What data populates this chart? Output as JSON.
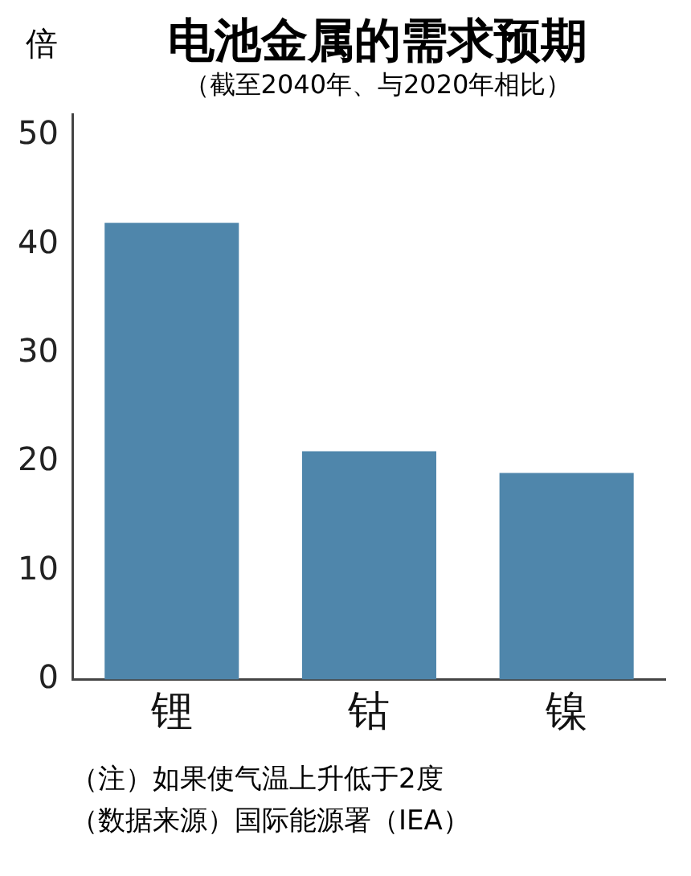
{
  "chart_data": {
    "type": "bar",
    "title": "电池金属的需求预期",
    "subtitle": "（截至2040年、与2020年相比）",
    "ylabel": "倍",
    "categories": [
      "锂",
      "钴",
      "镍"
    ],
    "values": [
      42,
      21,
      19
    ],
    "color": "#4f86ab",
    "ylim": [
      0,
      52
    ],
    "yticks": [
      0,
      10,
      20,
      30,
      40,
      50
    ],
    "grid": false,
    "legend": false,
    "annotations": [
      "（注）如果使气温上升低于2度",
      "（数据来源）国际能源署（IEA）"
    ]
  }
}
